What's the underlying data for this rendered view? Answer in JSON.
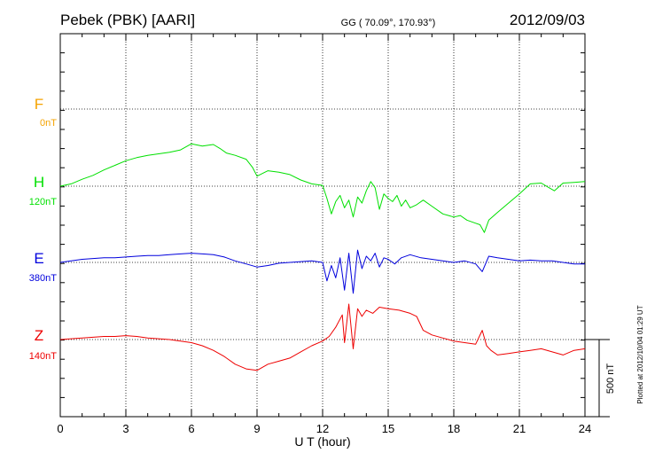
{
  "header": {
    "station": "Pebek (PBK)  [AARI]",
    "coords": "GG ( 70.09°, 170.93°)",
    "date": "2012/09/03"
  },
  "footer": {
    "plotted": "Plotted at 2012/10/04 01:29 UT"
  },
  "chart_data": {
    "type": "line",
    "xlabel": "U T (hour)",
    "xlim": [
      0,
      24
    ],
    "xticks": [
      0,
      3,
      6,
      9,
      12,
      15,
      18,
      21,
      24
    ],
    "grid": true,
    "scale_bar_label": "500 nT",
    "scale_bar_nT": 500,
    "series": [
      {
        "name": "F",
        "offset_label": "0nT",
        "color": "#f5a300",
        "x": [],
        "y": []
      },
      {
        "name": "H",
        "offset_label": "120nT",
        "color": "#00e000",
        "x": [
          0,
          0.5,
          1,
          1.5,
          2,
          2.5,
          3,
          3.5,
          4,
          4.5,
          5,
          5.5,
          6,
          6.5,
          7,
          7.3,
          7.6,
          8,
          8.5,
          8.8,
          9,
          9.5,
          10,
          10.5,
          11,
          11.5,
          12,
          12.2,
          12.4,
          12.6,
          12.8,
          13,
          13.2,
          13.4,
          13.6,
          13.8,
          14,
          14.2,
          14.4,
          14.6,
          14.8,
          15,
          15.2,
          15.4,
          15.6,
          15.8,
          16,
          16.3,
          16.6,
          17,
          17.5,
          18,
          18.3,
          18.6,
          19,
          19.2,
          19.4,
          19.6,
          20,
          20.5,
          21,
          21.5,
          22,
          22.3,
          22.6,
          23,
          23.5,
          24
        ],
        "y": [
          0,
          15,
          45,
          70,
          105,
          135,
          165,
          185,
          200,
          210,
          220,
          235,
          275,
          260,
          270,
          245,
          215,
          200,
          175,
          120,
          65,
          100,
          90,
          75,
          40,
          15,
          5,
          -80,
          -180,
          -100,
          -60,
          -140,
          -90,
          -200,
          -70,
          -110,
          -30,
          30,
          -10,
          -150,
          -50,
          -80,
          -100,
          -60,
          -130,
          -90,
          -140,
          -120,
          -90,
          -130,
          -180,
          -200,
          -190,
          -220,
          -240,
          -250,
          -300,
          -220,
          -170,
          -110,
          -50,
          15,
          20,
          -5,
          -30,
          20,
          25,
          30
        ]
      },
      {
        "name": "E",
        "offset_label": "380nT",
        "color": "#0000dd",
        "x": [
          0,
          0.5,
          1,
          1.5,
          2,
          2.5,
          3,
          3.5,
          4,
          4.5,
          5,
          5.5,
          6,
          6.5,
          7,
          7.5,
          8,
          8.5,
          9,
          9.5,
          10,
          10.5,
          11,
          11.5,
          12,
          12.2,
          12.4,
          12.6,
          12.8,
          13,
          13.2,
          13.4,
          13.6,
          13.8,
          14,
          14.2,
          14.4,
          14.6,
          14.8,
          15,
          15.3,
          15.6,
          16,
          16.5,
          17,
          17.5,
          18,
          18.5,
          19,
          19.3,
          19.6,
          20,
          20.5,
          21,
          21.5,
          22,
          22.5,
          23,
          23.5,
          24
        ],
        "y": [
          0,
          10,
          20,
          25,
          30,
          30,
          35,
          40,
          45,
          45,
          50,
          55,
          60,
          55,
          50,
          35,
          10,
          -10,
          -30,
          -20,
          -5,
          0,
          5,
          10,
          0,
          -120,
          -20,
          -100,
          30,
          -180,
          60,
          -200,
          80,
          -40,
          40,
          10,
          60,
          -30,
          30,
          20,
          -10,
          30,
          50,
          30,
          20,
          10,
          0,
          10,
          -10,
          -60,
          40,
          30,
          20,
          10,
          15,
          10,
          10,
          0,
          -10,
          -10
        ]
      },
      {
        "name": "Z",
        "offset_label": "140nT",
        "color": "#ee0000",
        "x": [
          0,
          0.5,
          1,
          1.5,
          2,
          2.5,
          3,
          3.5,
          4,
          4.5,
          5,
          5.5,
          6,
          6.5,
          7,
          7.5,
          8,
          8.5,
          9,
          9.5,
          10,
          10.5,
          11,
          11.5,
          12,
          12.3,
          12.6,
          12.9,
          13,
          13.2,
          13.4,
          13.6,
          13.8,
          14,
          14.3,
          14.6,
          15,
          15.5,
          16,
          16.3,
          16.6,
          17,
          17.5,
          18,
          18.5,
          19,
          19.3,
          19.5,
          19.7,
          20,
          20.5,
          21,
          21.5,
          22,
          22.5,
          23,
          23.5,
          24
        ],
        "y": [
          0,
          5,
          10,
          15,
          20,
          20,
          25,
          20,
          10,
          5,
          0,
          -10,
          -20,
          -40,
          -70,
          -110,
          -160,
          -190,
          -200,
          -160,
          -140,
          -120,
          -80,
          -40,
          -10,
          20,
          80,
          160,
          -20,
          230,
          -60,
          200,
          150,
          190,
          170,
          210,
          200,
          190,
          170,
          150,
          60,
          30,
          10,
          -10,
          -20,
          -30,
          60,
          -40,
          -70,
          -100,
          -90,
          -80,
          -70,
          -60,
          -80,
          -100,
          -70,
          -60
        ]
      }
    ]
  }
}
